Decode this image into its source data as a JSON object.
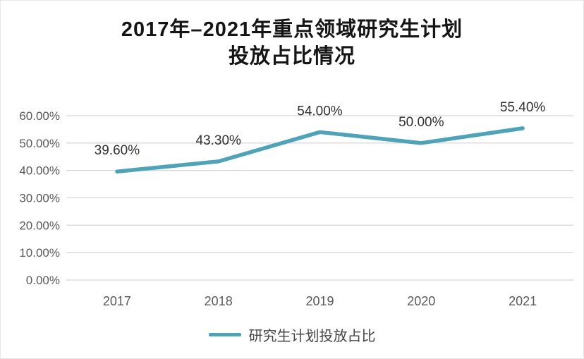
{
  "title": {
    "line1": "2017年–2021年重点领域研究生计划",
    "line2": "投放占比情况"
  },
  "chart_data": {
    "type": "line",
    "title": "2017年–2021年重点领域研究生计划投放占比情况",
    "categories": [
      "2017",
      "2018",
      "2019",
      "2020",
      "2021"
    ],
    "series": [
      {
        "name": "研究生计划投放占比",
        "values": [
          39.6,
          43.3,
          54.0,
          50.0,
          55.4
        ],
        "labels": [
          "39.60%",
          "43.30%",
          "54.00%",
          "50.00%",
          "55.40%"
        ]
      }
    ],
    "ylim": [
      0,
      60
    ],
    "y_ticks": [
      {
        "value": 0,
        "label": "0.00%"
      },
      {
        "value": 10,
        "label": "10.00%"
      },
      {
        "value": 20,
        "label": "20.00%"
      },
      {
        "value": 30,
        "label": "30.00%"
      },
      {
        "value": 40,
        "label": "40.00%"
      },
      {
        "value": 50,
        "label": "50.00%"
      },
      {
        "value": 60,
        "label": "60.00%"
      }
    ],
    "grid": true,
    "legend_position": "bottom",
    "colors": {
      "line": "#4fa3b8",
      "gridline": "#d8d8d8",
      "axis_label": "#595959",
      "data_label": "#303030",
      "title": "#151515"
    }
  }
}
